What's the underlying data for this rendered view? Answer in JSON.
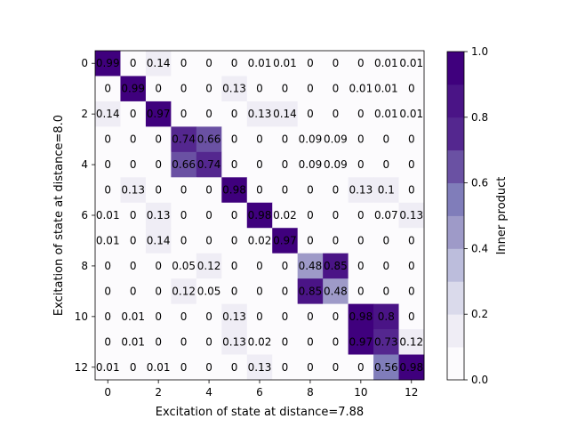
{
  "chart_data": {
    "type": "heatmap",
    "title": "",
    "xlabel": "Excitation of state at distance=7.88",
    "ylabel": "Excitation of state at distance=8.0",
    "x_ticks": [
      "0",
      "2",
      "4",
      "6",
      "8",
      "10",
      "12"
    ],
    "y_ticks": [
      "0",
      "2",
      "4",
      "6",
      "8",
      "10",
      "12"
    ],
    "rows": 13,
    "cols": 13,
    "values": [
      [
        0.99,
        0.0,
        0.14,
        0.0,
        0.0,
        0.0,
        0.01,
        0.01,
        0.0,
        0.0,
        0.0,
        0.01,
        0.01
      ],
      [
        0.0,
        0.99,
        0.0,
        0.0,
        0.0,
        0.13,
        0.0,
        0.0,
        0.0,
        0.0,
        0.01,
        0.01,
        0.0
      ],
      [
        0.14,
        0.0,
        0.97,
        0.0,
        0.0,
        0.0,
        0.13,
        0.14,
        0.0,
        0.0,
        0.0,
        0.01,
        0.01
      ],
      [
        0.0,
        0.0,
        0.0,
        0.74,
        0.66,
        0.0,
        0.0,
        0.0,
        0.09,
        0.09,
        0.0,
        0.0,
        0.0
      ],
      [
        0.0,
        0.0,
        0.0,
        0.66,
        0.74,
        0.0,
        0.0,
        0.0,
        0.09,
        0.09,
        0.0,
        0.0,
        0.0
      ],
      [
        0.0,
        0.13,
        0.0,
        0.0,
        0.0,
        0.98,
        0.0,
        0.0,
        0.0,
        0.0,
        0.13,
        0.1,
        0.0
      ],
      [
        0.01,
        0.0,
        0.13,
        0.0,
        0.0,
        0.0,
        0.98,
        0.02,
        0.0,
        0.0,
        0.0,
        0.07,
        0.13
      ],
      [
        0.01,
        0.0,
        0.14,
        0.0,
        0.0,
        0.0,
        0.02,
        0.97,
        0.0,
        0.0,
        0.0,
        0.0,
        0.0
      ],
      [
        0.0,
        0.0,
        0.0,
        0.05,
        0.12,
        0.0,
        0.0,
        0.0,
        0.48,
        0.85,
        0.0,
        0.0,
        0.0
      ],
      [
        0.0,
        0.0,
        0.0,
        0.12,
        0.05,
        0.0,
        0.0,
        0.0,
        0.85,
        0.48,
        0.0,
        0.0,
        0.0
      ],
      [
        0.0,
        0.01,
        0.0,
        0.0,
        0.0,
        0.13,
        0.0,
        0.0,
        0.0,
        0.0,
        0.98,
        0.8,
        0.0
      ],
      [
        0.0,
        0.01,
        0.0,
        0.0,
        0.0,
        0.13,
        0.02,
        0.0,
        0.0,
        0.0,
        0.97,
        0.73,
        0.12
      ],
      [
        0.01,
        0.0,
        0.01,
        0.0,
        0.0,
        0.0,
        0.13,
        0.0,
        0.0,
        0.0,
        0.0,
        0.56,
        0.98
      ]
    ],
    "colorbar": {
      "label": "Inner product",
      "ticks": [
        "0.0",
        "0.2",
        "0.4",
        "0.6",
        "0.8",
        "1.0"
      ],
      "vmin": 0.0,
      "vmax": 1.0,
      "levels": 10,
      "colors": [
        "#fcfbfd",
        "#efedf5",
        "#dadaeb",
        "#bcbddc",
        "#9e9ac8",
        "#807dba",
        "#6a51a3",
        "#54278f",
        "#4a1486",
        "#3f007d"
      ]
    }
  }
}
